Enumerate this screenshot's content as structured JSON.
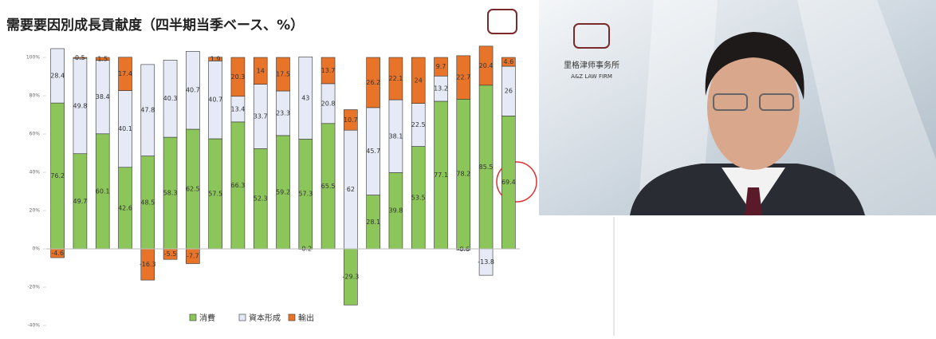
{
  "chart_data": {
    "type": "bar",
    "stacked": true,
    "title": "需要要因別成長貢献度（四半期当季ベース、%）",
    "categories": [
      null,
      null,
      null,
      null,
      null,
      null,
      null,
      null,
      null,
      null,
      null,
      null,
      null,
      null,
      null,
      null,
      null,
      null,
      null,
      null,
      null
    ],
    "series": [
      {
        "name": "消費",
        "color": "#8cc65a",
        "values": [
          76.2,
          49.7,
          60.1,
          42.6,
          48.5,
          58.3,
          62.5,
          57.5,
          66.3,
          52.3,
          59.2,
          57.3,
          65.5,
          -29.3,
          28.1,
          39.8,
          53.5,
          77.1,
          78.2,
          85.5,
          69.4
        ]
      },
      {
        "name": "資本形成",
        "color": "#e6eaf6",
        "values": [
          28.4,
          49.8,
          38.4,
          40.1,
          47.8,
          40.3,
          40.7,
          40.7,
          13.4,
          33.7,
          23.3,
          43.0,
          20.8,
          62.0,
          45.7,
          38.1,
          22.5,
          13.2,
          -0.6,
          -13.8,
          26.0
        ]
      },
      {
        "name": "輸出",
        "color": "#e8742a",
        "values": [
          -4.6,
          0.5,
          1.5,
          17.4,
          -16.3,
          -5.5,
          -7.7,
          1.9,
          20.3,
          14.0,
          17.5,
          -0.2,
          13.7,
          10.7,
          26.2,
          22.1,
          24.0,
          9.7,
          22.7,
          20.4,
          4.6
        ]
      }
    ],
    "ylim": [
      -40,
      100
    ],
    "yticks": [
      {
        "value": -40,
        "label": "-40%"
      },
      {
        "value": -20,
        "label": "-20%"
      },
      {
        "value": 0,
        "label": "0%"
      },
      {
        "value": 20,
        "label": "20%"
      },
      {
        "value": 40,
        "label": "40%"
      },
      {
        "value": 60,
        "label": "60%"
      },
      {
        "value": 80,
        "label": "80%"
      },
      {
        "value": 100,
        "label": "100%"
      }
    ],
    "legend": "bottom"
  },
  "video": {
    "firm_name": "里格津师事务所",
    "firm_name_en": "A&Z LAW FIRM"
  }
}
